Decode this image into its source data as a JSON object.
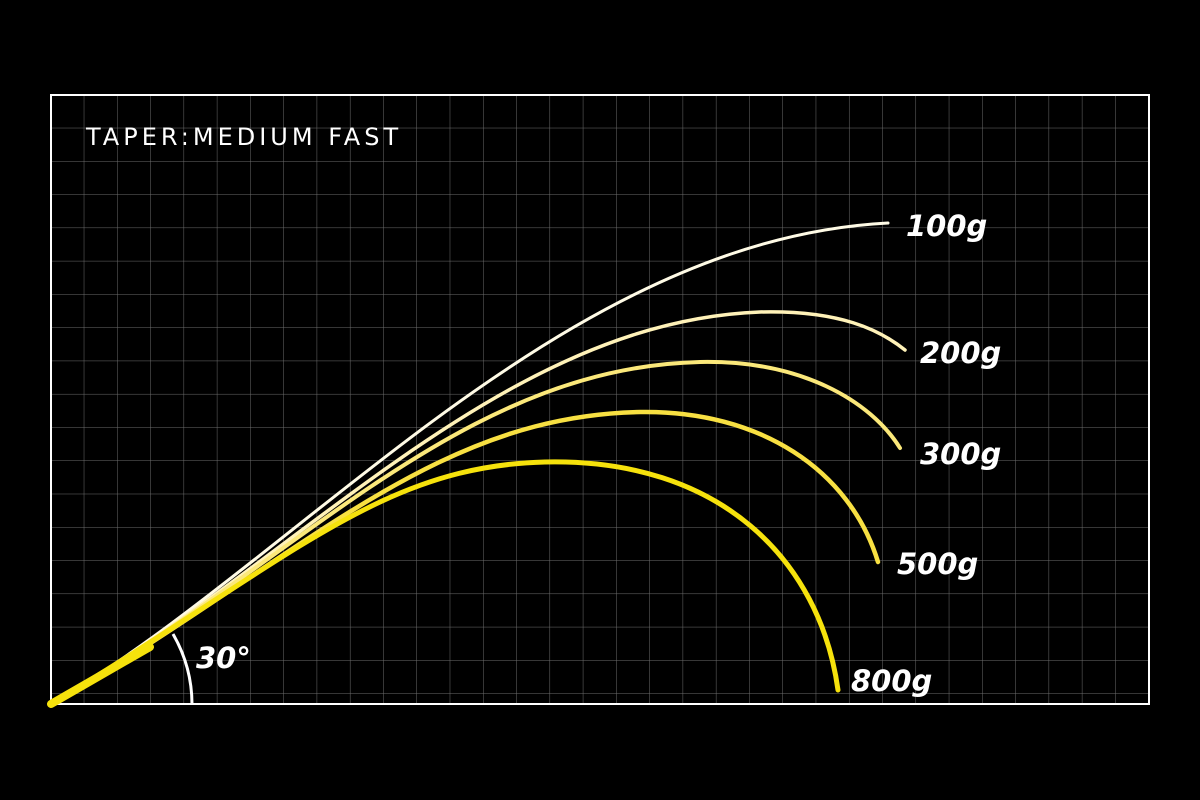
{
  "title": "TAPER:MEDIUM FAST",
  "angle_label": "30°",
  "curves": [
    {
      "label": "100g"
    },
    {
      "label": "200g"
    },
    {
      "label": "300g"
    },
    {
      "label": "500g"
    },
    {
      "label": "800g"
    }
  ]
}
